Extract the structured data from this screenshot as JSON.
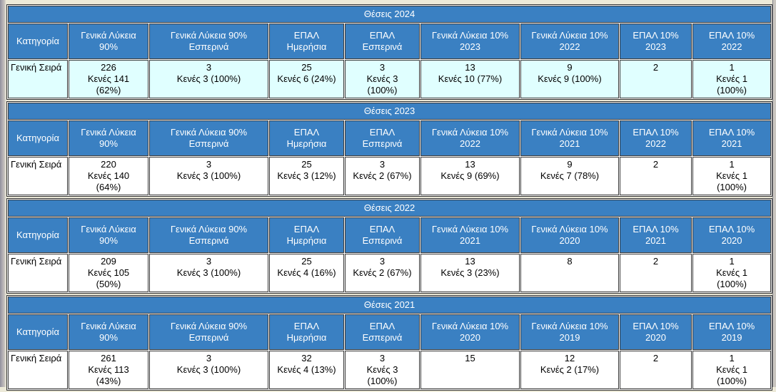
{
  "colors": {
    "page_bg": "#ECE9D8",
    "header_bg": "#3A80C2",
    "header_text": "#FFFFFF",
    "highlight_row_bg": "#E0FFFF"
  },
  "tables": [
    {
      "title": "Θέσεις 2024",
      "columns": [
        "Κατηγορία",
        "Γενικά Λύκεια\n90%",
        "Γενικά Λύκεια 90%\nΕσπερινά",
        "ΕΠΑΛ\nΗμερήσια",
        "ΕΠΑΛ\nΕσπερινά",
        "Γενικά Λύκεια 10%\n2023",
        "Γενικά Λύκεια 10%\n2022",
        "ΕΠΑΛ 10%\n2023",
        "ΕΠΑΛ 10%\n2022"
      ],
      "rows": [
        {
          "label": "Γενική Σειρά",
          "highlight": true,
          "cells": [
            {
              "value": "226",
              "vacant": "Κενές 141\n(62%)"
            },
            {
              "value": "3",
              "vacant": "Κενές 3 (100%)"
            },
            {
              "value": "25",
              "vacant": "Κενές 6 (24%)"
            },
            {
              "value": "3",
              "vacant": "Κενές 3\n(100%)"
            },
            {
              "value": "13",
              "vacant": "Κενές 10 (77%)"
            },
            {
              "value": "9",
              "vacant": "Κενές 9 (100%)"
            },
            {
              "value": "2",
              "vacant": ""
            },
            {
              "value": "1",
              "vacant": "Κενές 1\n(100%)"
            }
          ]
        }
      ]
    },
    {
      "title": "Θέσεις 2023",
      "columns": [
        "Κατηγορία",
        "Γενικά Λύκεια\n90%",
        "Γενικά Λύκεια 90%\nΕσπερινά",
        "ΕΠΑΛ\nΗμερήσια",
        "ΕΠΑΛ\nΕσπερινά",
        "Γενικά Λύκεια 10%\n2022",
        "Γενικά Λύκεια 10%\n2021",
        "ΕΠΑΛ 10%\n2022",
        "ΕΠΑΛ 10%\n2021"
      ],
      "rows": [
        {
          "label": "Γενική Σειρά",
          "highlight": false,
          "cells": [
            {
              "value": "220",
              "vacant": "Κενές 140\n(64%)"
            },
            {
              "value": "3",
              "vacant": "Κενές 3 (100%)"
            },
            {
              "value": "25",
              "vacant": "Κενές 3 (12%)"
            },
            {
              "value": "3",
              "vacant": "Κενές 2 (67%)"
            },
            {
              "value": "13",
              "vacant": "Κενές 9 (69%)"
            },
            {
              "value": "9",
              "vacant": "Κενές 7 (78%)"
            },
            {
              "value": "2",
              "vacant": ""
            },
            {
              "value": "1",
              "vacant": "Κενές 1\n(100%)"
            }
          ]
        }
      ]
    },
    {
      "title": "Θέσεις 2022",
      "columns": [
        "Κατηγορία",
        "Γενικά Λύκεια\n90%",
        "Γενικά Λύκεια 90%\nΕσπερινά",
        "ΕΠΑΛ\nΗμερήσια",
        "ΕΠΑΛ\nΕσπερινά",
        "Γενικά Λύκεια 10%\n2021",
        "Γενικά Λύκεια 10%\n2020",
        "ΕΠΑΛ 10%\n2021",
        "ΕΠΑΛ 10%\n2020"
      ],
      "rows": [
        {
          "label": "Γενική Σειρά",
          "highlight": false,
          "cells": [
            {
              "value": "209",
              "vacant": "Κενές 105\n(50%)"
            },
            {
              "value": "3",
              "vacant": "Κενές 3 (100%)"
            },
            {
              "value": "25",
              "vacant": "Κενές 4 (16%)"
            },
            {
              "value": "3",
              "vacant": "Κενές 2 (67%)"
            },
            {
              "value": "13",
              "vacant": "Κενές 3 (23%)"
            },
            {
              "value": "8",
              "vacant": ""
            },
            {
              "value": "2",
              "vacant": ""
            },
            {
              "value": "1",
              "vacant": "Κενές 1\n(100%)"
            }
          ]
        }
      ]
    },
    {
      "title": "Θέσεις 2021",
      "columns": [
        "Κατηγορία",
        "Γενικά Λύκεια\n90%",
        "Γενικά Λύκεια 90%\nΕσπερινά",
        "ΕΠΑΛ\nΗμερήσια",
        "ΕΠΑΛ\nΕσπερινά",
        "Γενικά Λύκεια 10%\n2020",
        "Γενικά Λύκεια 10%\n2019",
        "ΕΠΑΛ 10%\n2020",
        "ΕΠΑΛ 10%\n2019"
      ],
      "rows": [
        {
          "label": "Γενική Σειρά",
          "highlight": false,
          "cells": [
            {
              "value": "261",
              "vacant": "Κενές 113\n(43%)"
            },
            {
              "value": "3",
              "vacant": "Κενές 3 (100%)"
            },
            {
              "value": "32",
              "vacant": "Κενές 4 (13%)"
            },
            {
              "value": "3",
              "vacant": "Κενές 3\n(100%)"
            },
            {
              "value": "15",
              "vacant": ""
            },
            {
              "value": "12",
              "vacant": "Κενές 2 (17%)"
            },
            {
              "value": "2",
              "vacant": ""
            },
            {
              "value": "1",
              "vacant": "Κενές 1\n(100%)"
            }
          ]
        }
      ]
    }
  ]
}
